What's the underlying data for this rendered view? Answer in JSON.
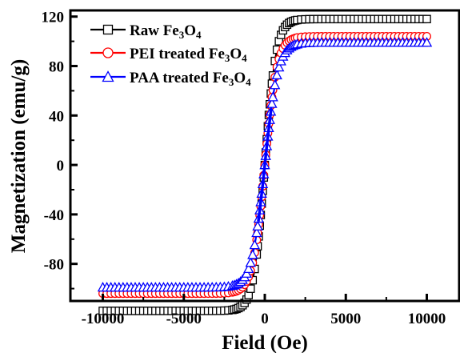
{
  "chart_data": {
    "type": "line",
    "xlabel": "Field (Oe)",
    "ylabel": "Magnetization (emu/g)",
    "xlim": [
      -12000,
      12000
    ],
    "ylim": [
      -110,
      125
    ],
    "x_ticks": [
      -10000,
      -5000,
      0,
      5000,
      10000
    ],
    "x_tick_labels": [
      "-10000",
      "-5000",
      "0",
      "5000",
      "10000"
    ],
    "y_ticks": [
      -80,
      -40,
      0,
      40,
      80,
      120
    ],
    "y_tick_labels": [
      "-80",
      "-40",
      "0",
      "40",
      "80",
      "120"
    ],
    "grid": false,
    "legend_position": "top-left",
    "series": [
      {
        "name": "Raw Fe3O4",
        "legend": {
          "parts": [
            [
              "Raw Fe",
              false
            ],
            [
              "3",
              true
            ],
            [
              "O",
              false
            ],
            [
              "4",
              true
            ]
          ]
        },
        "color": "#000000",
        "marker": "square",
        "ms": 118,
        "hk": 700,
        "x": [
          -10000,
          -8000,
          -6000,
          -4000,
          -3000,
          -2000,
          -1500,
          -1000,
          -600,
          -300,
          0,
          300,
          600,
          1000,
          1500,
          2000,
          3000,
          4000,
          6000,
          8000,
          10000
        ],
        "y": [
          -97,
          -95,
          -93,
          -90,
          -88,
          -84,
          -80,
          -71,
          -56,
          -35,
          0,
          35,
          56,
          71,
          80,
          84,
          88,
          90,
          93,
          95,
          97
        ]
      },
      {
        "name": "PEI treated Fe3O4",
        "legend": {
          "parts": [
            [
              "PEI treated Fe",
              false
            ],
            [
              "3",
              true
            ],
            [
              "O",
              false
            ],
            [
              "4",
              true
            ]
          ]
        },
        "color": "#ff0000",
        "marker": "circle",
        "ms": 104,
        "hk": 750,
        "x": [
          -10000,
          -8000,
          -6000,
          -4000,
          -3000,
          -2000,
          -1500,
          -1000,
          -600,
          -300,
          0,
          300,
          600,
          1000,
          1500,
          2000,
          3000,
          4000,
          6000,
          8000,
          10000
        ],
        "y": [
          -86,
          -84,
          -82,
          -79,
          -77,
          -73,
          -69,
          -61,
          -47,
          -29,
          0,
          29,
          47,
          61,
          69,
          73,
          77,
          79,
          82,
          84,
          86
        ]
      },
      {
        "name": "PAA treated Fe3O4",
        "legend": {
          "parts": [
            [
              "PAA treated Fe",
              false
            ],
            [
              "3",
              true
            ],
            [
              "O",
              false
            ],
            [
              "4",
              true
            ]
          ]
        },
        "color": "#0000ff",
        "marker": "triangle",
        "ms": 99,
        "hk": 800,
        "x": [
          -10000,
          -8000,
          -6000,
          -4000,
          -3000,
          -2000,
          -1500,
          -1000,
          -600,
          -300,
          0,
          300,
          600,
          1000,
          1500,
          2000,
          3000,
          4000,
          6000,
          8000,
          10000
        ],
        "y": [
          -81,
          -79,
          -77,
          -74,
          -72,
          -68,
          -64,
          -56,
          -43,
          -26,
          0,
          26,
          43,
          56,
          64,
          68,
          72,
          74,
          77,
          79,
          81
        ]
      }
    ]
  }
}
